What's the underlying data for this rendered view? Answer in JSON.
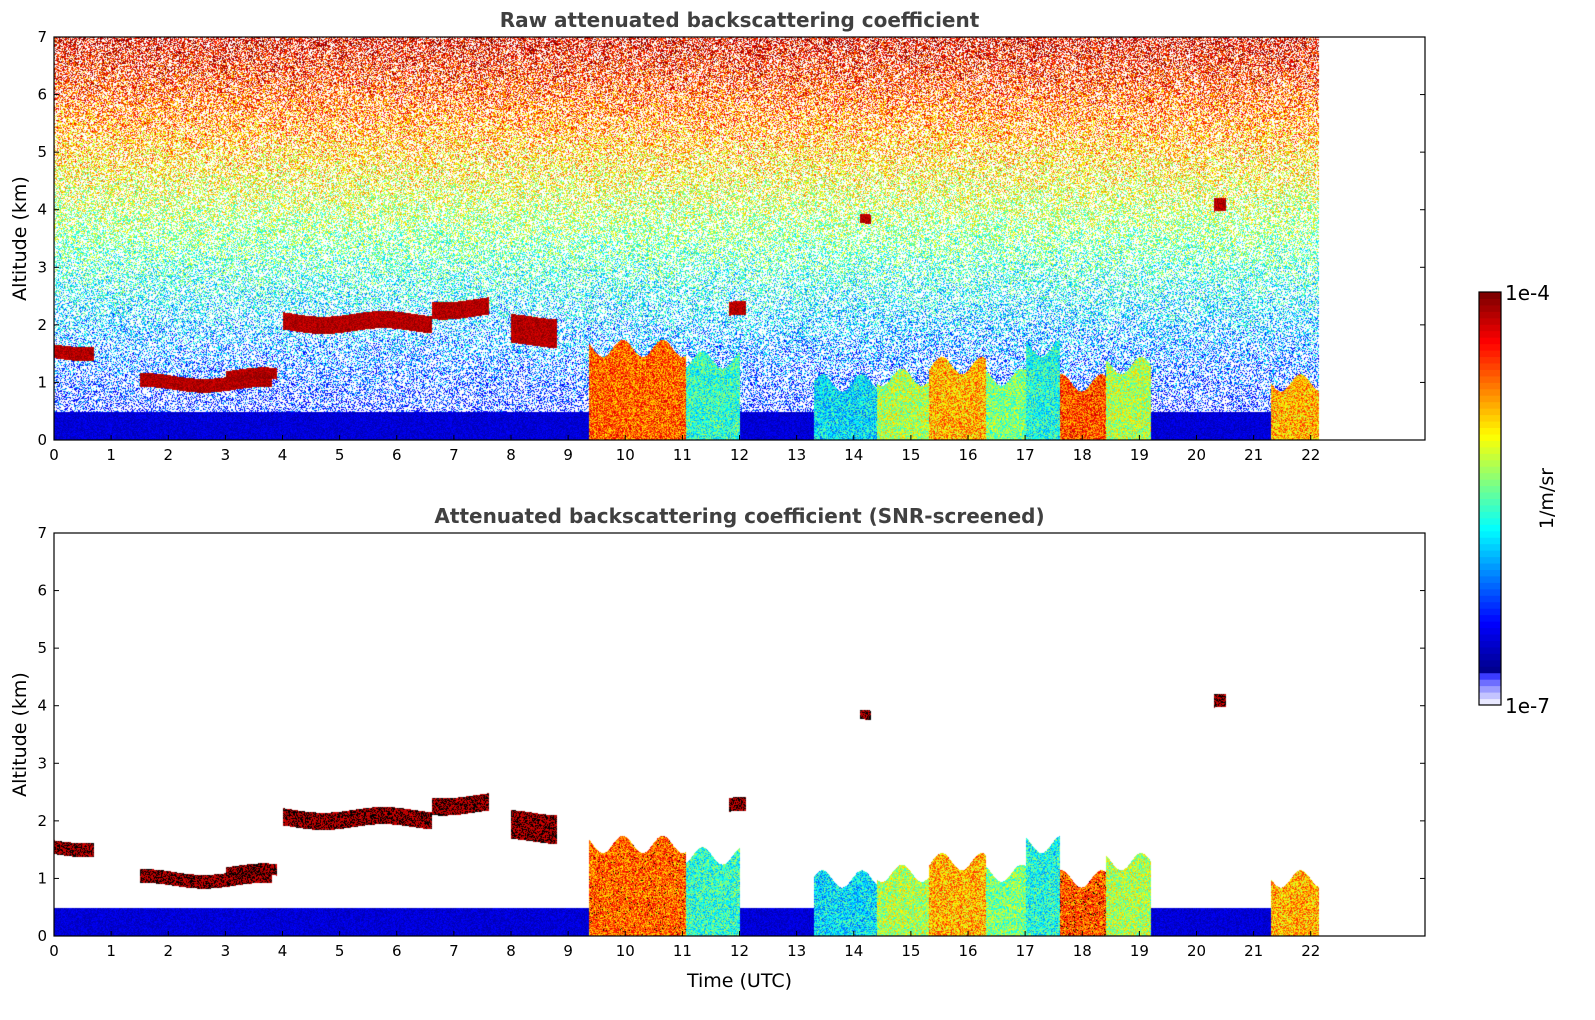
{
  "colors": {
    "jet_stops": [
      "#00008f",
      "#0000ff",
      "#0080ff",
      "#00ffff",
      "#80ff80",
      "#ffff00",
      "#ff8000",
      "#ff0000",
      "#800000"
    ],
    "low_bins": [
      "#e8e8ff",
      "#c4c4ff",
      "#9c9cff",
      "#6e6eff",
      "#3b3bff"
    ],
    "title": "#404040",
    "screened_black": "#000000"
  },
  "colorbar": {
    "label": "1/m/sr",
    "top_label": "1e-4",
    "bottom_label": "1e-7",
    "scale": "log",
    "range": [
      1e-07,
      0.0001
    ],
    "orientation": "vertical",
    "placement": "right"
  },
  "chart_data": [
    {
      "type": "heatmap",
      "title": "Raw attenuated backscattering coefficient",
      "xlabel": "",
      "ylabel": "Altitude (km)",
      "xlim": [
        0,
        24
      ],
      "ylim": [
        0,
        7
      ],
      "x_ticks": [
        "0",
        "1",
        "2",
        "3",
        "4",
        "5",
        "6",
        "7",
        "8",
        "9",
        "10",
        "11",
        "12",
        "13",
        "14",
        "15",
        "16",
        "17",
        "18",
        "19",
        "20",
        "21",
        "22"
      ],
      "y_ticks": [
        "0",
        "1",
        "2",
        "3",
        "4",
        "5",
        "6",
        "7"
      ],
      "data_end_time": 22.15,
      "grid": false,
      "screened": false,
      "features": [
        {
          "kind": "boundary_layer",
          "t": [
            0,
            22.15
          ],
          "alt": [
            0,
            0.5
          ],
          "level": 0.08
        },
        {
          "kind": "cloud_layer",
          "t": [
            0,
            0.7
          ],
          "alt": 1.55,
          "thickness": 0.12
        },
        {
          "kind": "cloud_layer",
          "t": [
            1.5,
            3.8
          ],
          "alt": 1.0,
          "thickness": 0.12
        },
        {
          "kind": "cloud_layer",
          "t": [
            3.0,
            3.9
          ],
          "alt": 1.12,
          "thickness": 0.1
        },
        {
          "kind": "cloud_layer",
          "t": [
            4.0,
            6.6
          ],
          "alt": 2.05,
          "thickness": 0.15
        },
        {
          "kind": "cloud_layer",
          "t": [
            6.6,
            7.6
          ],
          "alt": 2.3,
          "thickness": 0.15
        },
        {
          "kind": "cloud_layer",
          "t": [
            8.0,
            8.8
          ],
          "alt": 1.9,
          "thickness": 0.25
        },
        {
          "kind": "cloud_layer",
          "t": [
            11.8,
            12.1
          ],
          "alt": 2.25,
          "thickness": 0.12
        },
        {
          "kind": "cloud_layer",
          "t": [
            14.1,
            14.3
          ],
          "alt": 3.8,
          "thickness": 0.08
        },
        {
          "kind": "cloud_layer",
          "t": [
            20.3,
            20.5
          ],
          "alt": 4.05,
          "thickness": 0.12
        },
        {
          "kind": "dense_column",
          "t": [
            9.35,
            11.05
          ],
          "alt": [
            0,
            1.6
          ],
          "level": 0.78
        },
        {
          "kind": "dense_column",
          "t": [
            11.05,
            12.0
          ],
          "alt": [
            0,
            1.4
          ],
          "level": 0.42
        },
        {
          "kind": "dense_column",
          "t": [
            13.3,
            14.4
          ],
          "alt": [
            0,
            1.0
          ],
          "level": 0.35
        },
        {
          "kind": "dense_column",
          "t": [
            14.4,
            15.3
          ],
          "alt": [
            0,
            1.1
          ],
          "level": 0.55
        },
        {
          "kind": "dense_column",
          "t": [
            15.3,
            16.3
          ],
          "alt": [
            0,
            1.3
          ],
          "level": 0.7
        },
        {
          "kind": "dense_column",
          "t": [
            16.3,
            17.0
          ],
          "alt": [
            0,
            1.1
          ],
          "level": 0.5
        },
        {
          "kind": "dense_column",
          "t": [
            17.0,
            17.6
          ],
          "alt": [
            0,
            1.6
          ],
          "level": 0.4
        },
        {
          "kind": "dense_column",
          "t": [
            17.6,
            18.4
          ],
          "alt": [
            0,
            1.0
          ],
          "level": 0.8
        },
        {
          "kind": "dense_column",
          "t": [
            18.4,
            19.2
          ],
          "alt": [
            0,
            1.3
          ],
          "level": 0.55
        },
        {
          "kind": "dense_column",
          "t": [
            21.3,
            22.15
          ],
          "alt": [
            0,
            1.0
          ],
          "level": 0.7
        }
      ]
    },
    {
      "type": "heatmap",
      "title": "Attenuated backscattering coefficient (SNR-screened)",
      "xlabel": "Time (UTC)",
      "ylabel": "Altitude (km)",
      "xlim": [
        0,
        24
      ],
      "ylim": [
        0,
        7
      ],
      "x_ticks": [
        "0",
        "1",
        "2",
        "3",
        "4",
        "5",
        "6",
        "7",
        "8",
        "9",
        "10",
        "11",
        "12",
        "13",
        "14",
        "15",
        "16",
        "17",
        "18",
        "19",
        "20",
        "21",
        "22"
      ],
      "y_ticks": [
        "0",
        "1",
        "2",
        "3",
        "4",
        "5",
        "6",
        "7"
      ],
      "data_end_time": 22.15,
      "grid": false,
      "screened": true
    }
  ]
}
